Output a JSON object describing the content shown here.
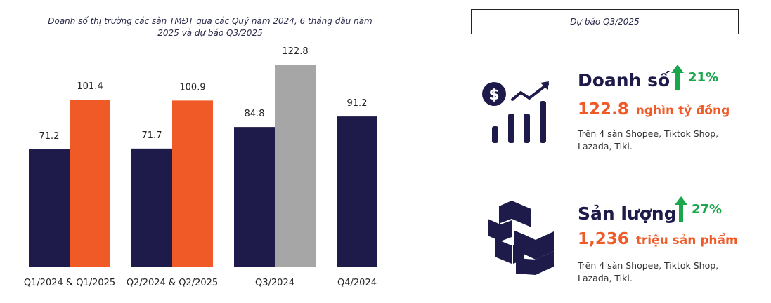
{
  "chart_data": {
    "type": "bar",
    "title": "Doanh số thị trường các sàn TMĐT qua các Quý năm 2024, 6 tháng đầu năm 2025 và dự báo Q3/2025",
    "categories": [
      "Q1/2024 & Q1/2025",
      "Q2/2024 & Q2/2025",
      "Q3/2024",
      "Q4/2024"
    ],
    "bars": [
      {
        "category": "Q1/2024 & Q1/2025",
        "value": 71.2,
        "label": "71.2",
        "color": "#1e1b4b"
      },
      {
        "category": "Q1/2024 & Q1/2025",
        "value": 101.4,
        "label": "101.4",
        "color": "#ef5a27"
      },
      {
        "category": "Q2/2024 & Q2/2025",
        "value": 71.7,
        "label": "71.7",
        "color": "#1e1b4b"
      },
      {
        "category": "Q2/2024 & Q2/2025",
        "value": 100.9,
        "label": "100.9",
        "color": "#ef5a27"
      },
      {
        "category": "Q3/2024",
        "value": 84.8,
        "label": "84.8",
        "color": "#1e1b4b"
      },
      {
        "category": "Q3/2024",
        "value": 122.8,
        "label": "122.8",
        "color": "#a6a6a6"
      },
      {
        "category": "Q4/2024",
        "value": 91.2,
        "label": "91.2",
        "color": "#1e1b4b"
      }
    ],
    "ylim": [
      0,
      130
    ],
    "grid": false,
    "legend": "none"
  },
  "forecast": {
    "header": "Dự báo Q3/2025",
    "revenue": {
      "title": "Doanh số",
      "growth": "21%",
      "value": "122.8",
      "unit": "nghìn tỷ đồng",
      "desc": "Trên 4 sàn Shopee, Tiktok Shop, Lazada, Tiki.",
      "icon": "dollar-growth-chart-icon"
    },
    "volume": {
      "title": "Sản lượng",
      "growth": "27%",
      "value": "1,236",
      "unit": "triệu sản phẩm",
      "desc": "Trên 4 sàn Shopee, Tiktok Shop, Lazada, Tiki.",
      "icon": "boxes-icon"
    }
  },
  "colors": {
    "navy": "#1e1b4b",
    "orange": "#ef5a27",
    "gray": "#a6a6a6",
    "green": "#1aa64b"
  }
}
